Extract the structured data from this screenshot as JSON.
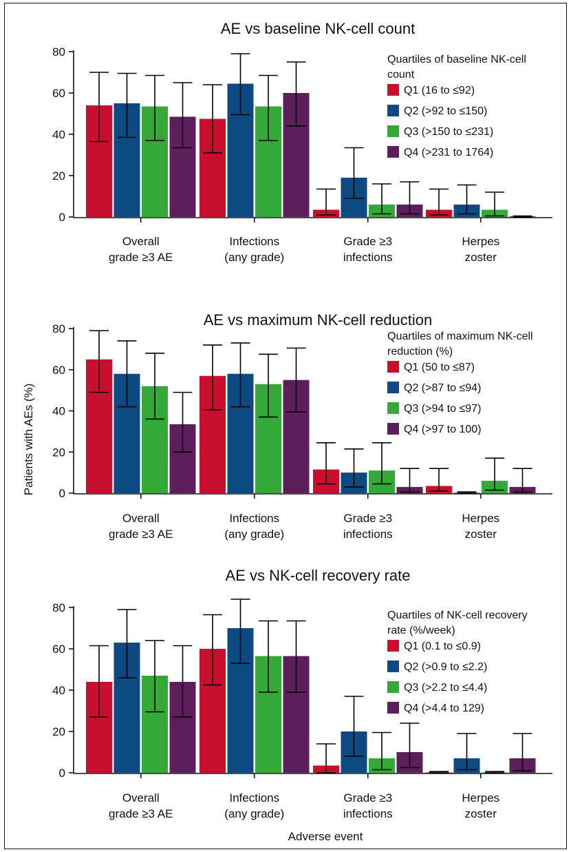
{
  "figure": {
    "ylabel": "Patients with AEs (%)",
    "xlabel": "Adverse event"
  },
  "colors": {
    "Q1": "#c8102e",
    "Q2": "#0d4a82",
    "Q3": "#34a937",
    "Q4": "#5c1f5c",
    "axis": "#111111"
  },
  "chart_data": [
    {
      "type": "bar",
      "title": "AE vs baseline NK-cell count",
      "categories": [
        [
          "Overall",
          "grade ≥3 AE"
        ],
        [
          "Infections",
          "(any grade)"
        ],
        [
          "Grade ≥3",
          "infections"
        ],
        [
          "Herpes",
          "zoster"
        ]
      ],
      "ylim": [
        0,
        80
      ],
      "yticks": [
        0,
        20,
        40,
        60,
        80
      ],
      "legend_title": [
        "Quartiles of baseline NK-cell",
        "count"
      ],
      "legend_position": "top-right",
      "series": [
        {
          "name": "Q1 (16 to ≤92)",
          "values": [
            54,
            47.5,
            3.5,
            3.5
          ],
          "err_low": [
            36.5,
            31,
            1,
            1
          ],
          "err_high": [
            70,
            64,
            13.5,
            13.5
          ]
        },
        {
          "name": "Q2 (>92 to ≤150)",
          "values": [
            55,
            64.5,
            19,
            6
          ],
          "err_low": [
            38.5,
            49.5,
            9,
            1.5
          ],
          "err_high": [
            69.5,
            79,
            33.5,
            15.5
          ]
        },
        {
          "name": "Q3 (>150 to ≤231)",
          "values": [
            53.5,
            53.5,
            6,
            3.5
          ],
          "err_low": [
            37,
            37,
            1.5,
            0.5
          ],
          "err_high": [
            68.5,
            68.5,
            16,
            12
          ]
        },
        {
          "name": "Q4 (>231 to 1764)",
          "values": [
            48.5,
            60,
            6,
            0.3
          ],
          "err_low": [
            33.5,
            44,
            1.5,
            0
          ],
          "err_high": [
            65,
            75,
            17,
            0.5
          ]
        }
      ]
    },
    {
      "type": "bar",
      "title": "AE vs maximum NK-cell reduction",
      "categories": [
        [
          "Overall",
          "grade ≥3 AE"
        ],
        [
          "Infections",
          "(any grade)"
        ],
        [
          "Grade ≥3",
          "infections"
        ],
        [
          "Herpes",
          "zoster"
        ]
      ],
      "ylim": [
        0,
        80
      ],
      "yticks": [
        0,
        20,
        40,
        60,
        80
      ],
      "legend_title": [
        "Quartiles of maximum NK-cell",
        "reduction (%)"
      ],
      "legend_position": "top-right",
      "series": [
        {
          "name": "Q1 (50 to ≤87)",
          "values": [
            65,
            57,
            11.5,
            3.5
          ],
          "err_low": [
            49,
            40.5,
            4.5,
            1
          ],
          "err_high": [
            79,
            72,
            24.5,
            12
          ]
        },
        {
          "name": "Q2 (>87 to ≤94)",
          "values": [
            58,
            58,
            10,
            0.2
          ],
          "err_low": [
            42,
            42,
            3,
            0
          ],
          "err_high": [
            74,
            73,
            21.5,
            0.6
          ]
        },
        {
          "name": "Q3 (>94 to ≤97)",
          "values": [
            52,
            53,
            11,
            6
          ],
          "err_low": [
            36,
            37,
            4.5,
            1.5
          ],
          "err_high": [
            68,
            67.5,
            24.5,
            17
          ]
        },
        {
          "name": "Q4 (>97 to 100)",
          "values": [
            33.5,
            55,
            3,
            3
          ],
          "err_low": [
            20,
            39.5,
            0.5,
            0.5
          ],
          "err_high": [
            49,
            70.5,
            12,
            12
          ]
        }
      ]
    },
    {
      "type": "bar",
      "title": "AE vs NK-cell recovery rate",
      "categories": [
        [
          "Overall",
          "grade ≥3 AE"
        ],
        [
          "Infections",
          "(any grade)"
        ],
        [
          "Grade ≥3",
          "infections"
        ],
        [
          "Herpes",
          "zoster"
        ]
      ],
      "ylim": [
        0,
        80
      ],
      "yticks": [
        0,
        20,
        40,
        60,
        80
      ],
      "legend_title": [
        "Quartiles of NK-cell recovery",
        "rate (%/week)"
      ],
      "legend_position": "top-right",
      "series": [
        {
          "name": "Q1 (0.1 to ≤0.9)",
          "values": [
            44,
            60,
            3.5,
            0.2
          ],
          "err_low": [
            27,
            42.5,
            0,
            0
          ],
          "err_high": [
            61.5,
            76.5,
            14,
            0.6
          ]
        },
        {
          "name": "Q2 (>0.9 to ≤2.2)",
          "values": [
            63,
            70,
            20,
            7
          ],
          "err_low": [
            46,
            53,
            8,
            1.5
          ],
          "err_high": [
            79,
            84,
            37,
            19
          ]
        },
        {
          "name": "Q3 (>2.2 to ≤4.4)",
          "values": [
            47,
            56.5,
            7,
            0.2
          ],
          "err_low": [
            29.5,
            39,
            1.5,
            0
          ],
          "err_high": [
            64,
            73.5,
            19.5,
            0.6
          ]
        },
        {
          "name": "Q4 (>4.4 to 129)",
          "values": [
            44,
            56.5,
            10,
            7
          ],
          "err_low": [
            27,
            39,
            2.5,
            1
          ],
          "err_high": [
            61.5,
            73.5,
            24,
            19
          ]
        }
      ]
    }
  ]
}
